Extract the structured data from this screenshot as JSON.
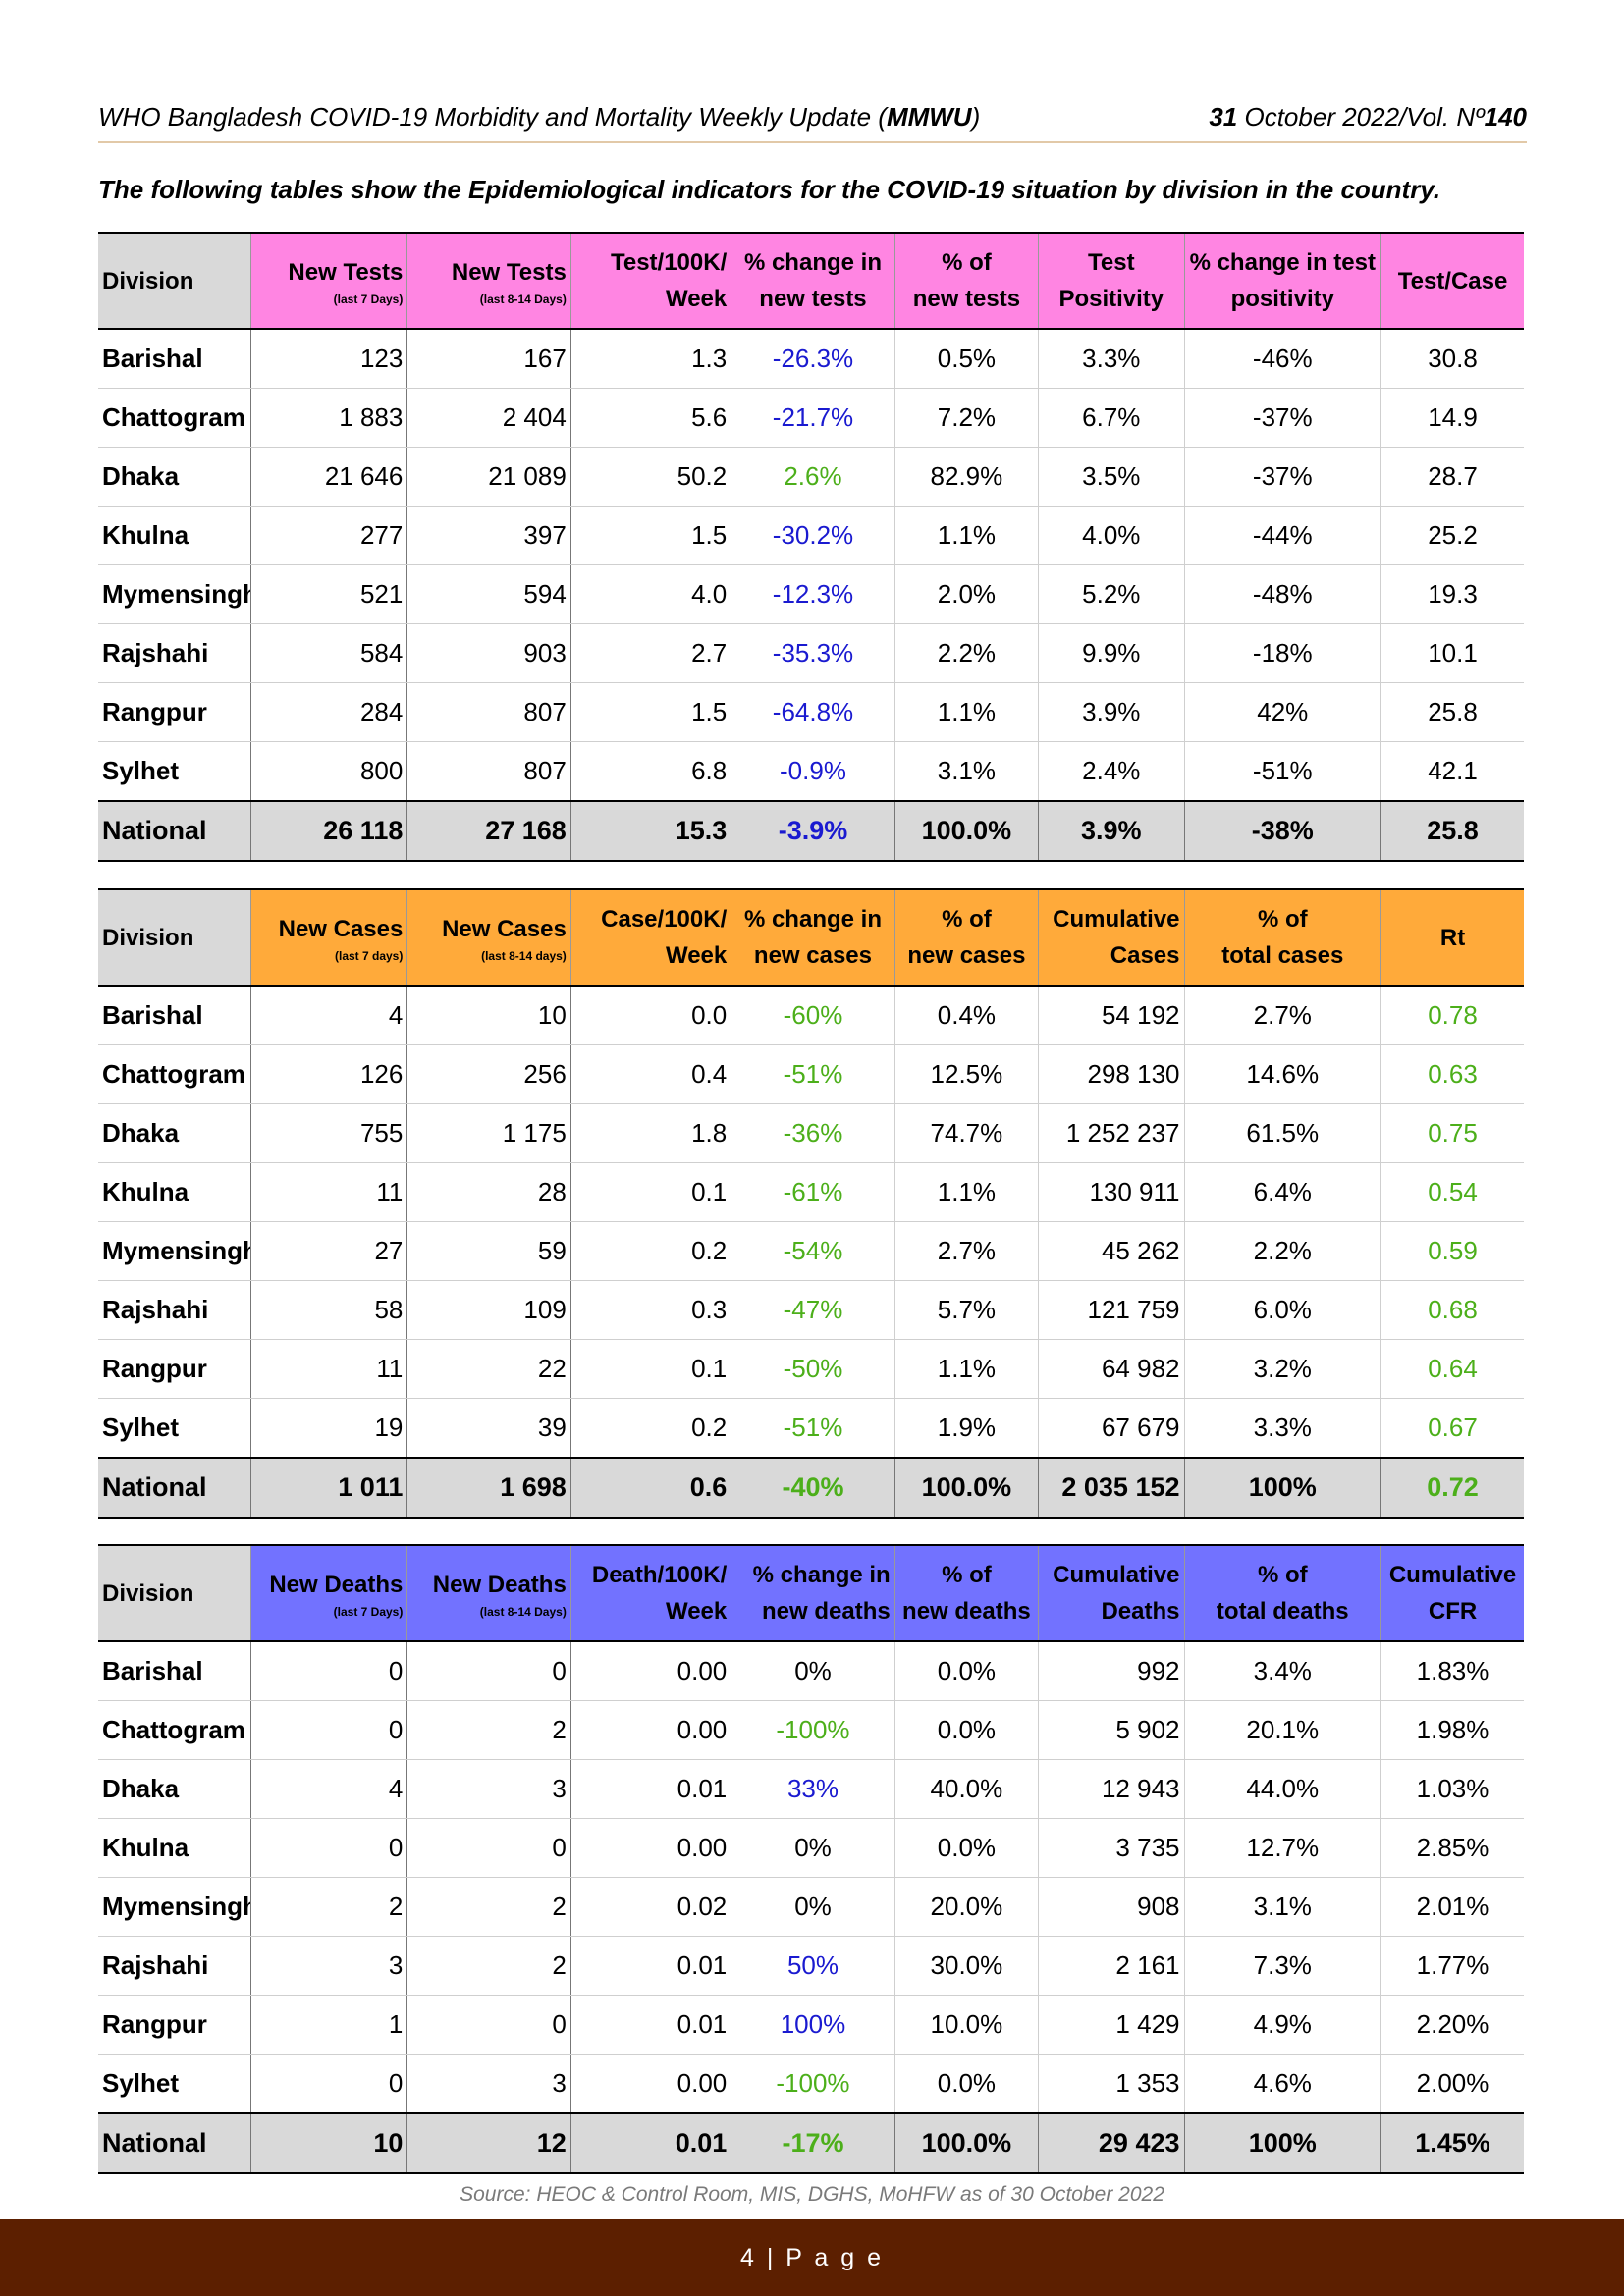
{
  "header": {
    "title_prefix": "WHO Bangladesh COVID-19 Morbidity and Mortality Weekly Update (",
    "title_bold": "MMWU",
    "title_suffix": ")",
    "date_day": "31",
    "date_rest": " October 2022/Vol. Nº",
    "vol_no": "140"
  },
  "intro": "The following tables show the Epidemiological indicators for the COVID-19 situation by division in the country.",
  "tests": {
    "headers": [
      "Division",
      "New Tests",
      "New Tests",
      "Test/100K/",
      "% change in",
      "% of",
      "Test",
      "% change in test",
      "Test/Case"
    ],
    "headers2": [
      "",
      "(last 7 Days)",
      "(last 8-14 Days)",
      "Week",
      "new tests",
      "new tests",
      "Positivity",
      "positivity",
      ""
    ],
    "rows": [
      [
        "Barishal",
        "123",
        "167",
        "1.3",
        "-26.3%",
        "0.5%",
        "3.3%",
        "-46%",
        "30.8"
      ],
      [
        "Chattogram",
        "1 883",
        "2 404",
        "5.6",
        "-21.7%",
        "7.2%",
        "6.7%",
        "-37%",
        "14.9"
      ],
      [
        "Dhaka",
        "21 646",
        "21 089",
        "50.2",
        "2.6%",
        "82.9%",
        "3.5%",
        "-37%",
        "28.7"
      ],
      [
        "Khulna",
        "277",
        "397",
        "1.5",
        "-30.2%",
        "1.1%",
        "4.0%",
        "-44%",
        "25.2"
      ],
      [
        "Mymensingh",
        "521",
        "594",
        "4.0",
        "-12.3%",
        "2.0%",
        "5.2%",
        "-48%",
        "19.3"
      ],
      [
        "Rajshahi",
        "584",
        "903",
        "2.7",
        "-35.3%",
        "2.2%",
        "9.9%",
        "-18%",
        "10.1"
      ],
      [
        "Rangpur",
        "284",
        "807",
        "1.5",
        "-64.8%",
        "1.1%",
        "3.9%",
        "42%",
        "25.8"
      ],
      [
        "Sylhet",
        "800",
        "807",
        "6.8",
        "-0.9%",
        "3.1%",
        "2.4%",
        "-51%",
        "42.1"
      ]
    ],
    "national": [
      "National",
      "26 118",
      "27 168",
      "15.3",
      "-3.9%",
      "100.0%",
      "3.9%",
      "-38%",
      "25.8"
    ]
  },
  "cases": {
    "headers": [
      "Division",
      "New Cases",
      "New Cases",
      "Case/100K/",
      "% change in",
      "% of",
      "Cumulative",
      "% of",
      "Rt"
    ],
    "headers2": [
      "",
      "(last  7 days)",
      "(last 8-14 days)",
      "Week",
      "new cases",
      "new cases",
      "Cases",
      "total cases",
      ""
    ],
    "rows": [
      [
        "Barishal",
        "4",
        "10",
        "0.0",
        "-60%",
        "0.4%",
        "54 192",
        "2.7%",
        "0.78"
      ],
      [
        "Chattogram",
        "126",
        "256",
        "0.4",
        "-51%",
        "12.5%",
        "298 130",
        "14.6%",
        "0.63"
      ],
      [
        "Dhaka",
        "755",
        "1 175",
        "1.8",
        "-36%",
        "74.7%",
        "1 252 237",
        "61.5%",
        "0.75"
      ],
      [
        "Khulna",
        "11",
        "28",
        "0.1",
        "-61%",
        "1.1%",
        "130 911",
        "6.4%",
        "0.54"
      ],
      [
        "Mymensingh",
        "27",
        "59",
        "0.2",
        "-54%",
        "2.7%",
        "45 262",
        "2.2%",
        "0.59"
      ],
      [
        "Rajshahi",
        "58",
        "109",
        "0.3",
        "-47%",
        "5.7%",
        "121 759",
        "6.0%",
        "0.68"
      ],
      [
        "Rangpur",
        "11",
        "22",
        "0.1",
        "-50%",
        "1.1%",
        "64 982",
        "3.2%",
        "0.64"
      ],
      [
        "Sylhet",
        "19",
        "39",
        "0.2",
        "-51%",
        "1.9%",
        "67 679",
        "3.3%",
        "0.67"
      ]
    ],
    "national": [
      "National",
      "1 011",
      "1 698",
      "0.6",
      "-40%",
      "100.0%",
      "2 035 152",
      "100%",
      "0.72"
    ]
  },
  "deaths": {
    "headers": [
      "Division",
      "New Deaths",
      "New Deaths",
      "Death/100K/",
      "% change in",
      "% of",
      "Cumulative",
      "% of",
      "Cumulative"
    ],
    "headers2": [
      "",
      "(last 7 Days)",
      "(last 8-14 Days)",
      "Week",
      "new deaths",
      "new deaths",
      "Deaths",
      "total deaths",
      "CFR"
    ],
    "rows": [
      [
        "Barishal",
        "0",
        "0",
        "0.00",
        "0%",
        "0.0%",
        "992",
        "3.4%",
        "1.83%"
      ],
      [
        "Chattogram",
        "0",
        "2",
        "0.00",
        "-100%",
        "0.0%",
        "5 902",
        "20.1%",
        "1.98%"
      ],
      [
        "Dhaka",
        "4",
        "3",
        "0.01",
        "33%",
        "40.0%",
        "12 943",
        "44.0%",
        "1.03%"
      ],
      [
        "Khulna",
        "0",
        "0",
        "0.00",
        "0%",
        "0.0%",
        "3 735",
        "12.7%",
        "2.85%"
      ],
      [
        "Mymensingh",
        "2",
        "2",
        "0.02",
        "0%",
        "20.0%",
        "908",
        "3.1%",
        "2.01%"
      ],
      [
        "Rajshahi",
        "3",
        "2",
        "0.01",
        "50%",
        "30.0%",
        "2 161",
        "7.3%",
        "1.77%"
      ],
      [
        "Rangpur",
        "1",
        "0",
        "0.01",
        "100%",
        "10.0%",
        "1 429",
        "4.9%",
        "2.20%"
      ],
      [
        "Sylhet",
        "0",
        "3",
        "0.00",
        "-100%",
        "0.0%",
        "1 353",
        "4.6%",
        "2.00%"
      ]
    ],
    "national": [
      "National",
      "10",
      "12",
      "0.01",
      "-17%",
      "100.0%",
      "29 423",
      "100%",
      "1.45%"
    ]
  },
  "source": "Source: HEOC & Control Room, MIS, DGHS, MoHFW as of 30 October 2022",
  "footer": "4 | P a g e",
  "colors": {
    "tests_header": "#ff85e2",
    "cases_header": "#ffaa3a",
    "deaths_header": "#7272ff",
    "decrease_text": "#1a1ad0",
    "increase_text": "#4caf1a",
    "footer_bg": "#5c1f00"
  }
}
